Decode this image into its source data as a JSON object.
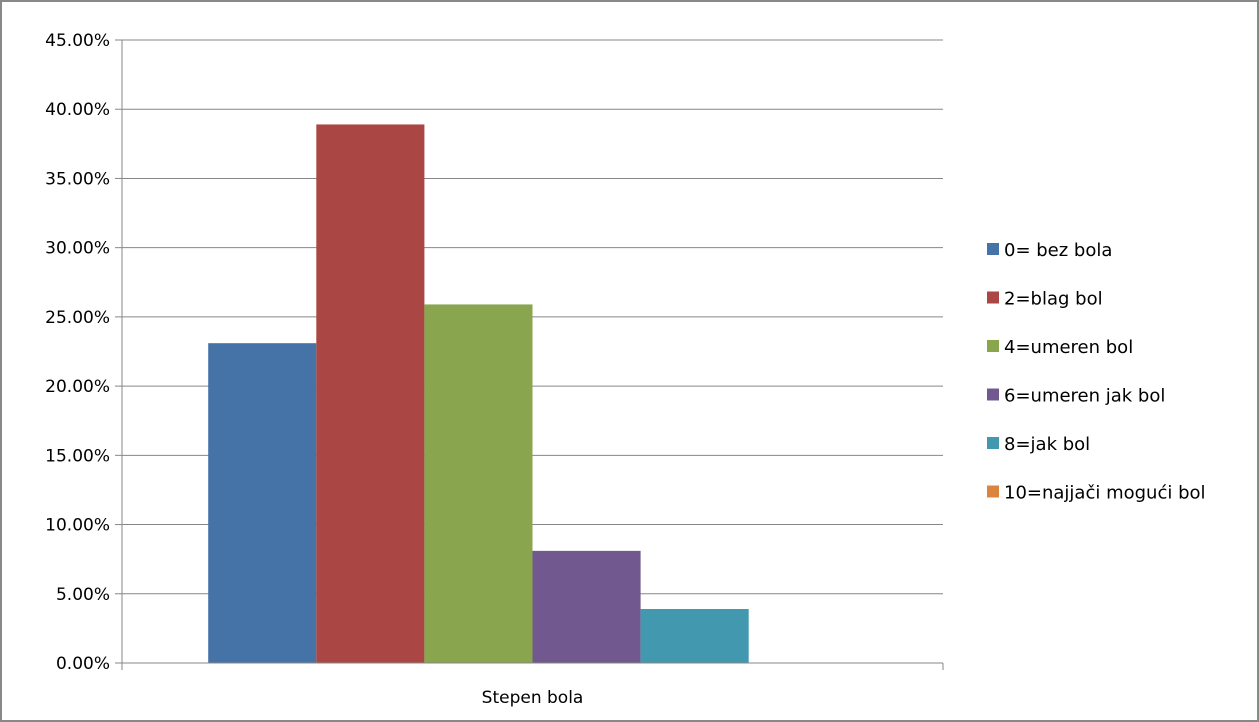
{
  "chart_data": {
    "type": "bar",
    "categories": [
      "Stepen bola"
    ],
    "series": [
      {
        "name": "0= bez bola",
        "values": [
          0.231
        ],
        "color": "#4572A7"
      },
      {
        "name": "2=blag bol",
        "values": [
          0.389
        ],
        "color": "#AA4643"
      },
      {
        "name": "4=umeren bol",
        "values": [
          0.259
        ],
        "color": "#89A54E"
      },
      {
        "name": "6=umeren jak bol",
        "values": [
          0.081
        ],
        "color": "#71588F"
      },
      {
        "name": "8=jak bol",
        "values": [
          0.039
        ],
        "color": "#4198AF"
      },
      {
        "name": "10=najjači mogući bol",
        "values": [
          0
        ],
        "color": "#DB843D"
      }
    ],
    "ylim": [
      0,
      0.45
    ],
    "yticks": [
      0,
      0.05,
      0.1,
      0.15,
      0.2,
      0.25,
      0.3,
      0.35,
      0.4,
      0.45
    ],
    "ytick_labels": [
      "0.00%",
      "5.00%",
      "10.00%",
      "15.00%",
      "20.00%",
      "25.00%",
      "30.00%",
      "35.00%",
      "40.00%",
      "45.00%"
    ],
    "grid": true,
    "legend_position": "right"
  }
}
